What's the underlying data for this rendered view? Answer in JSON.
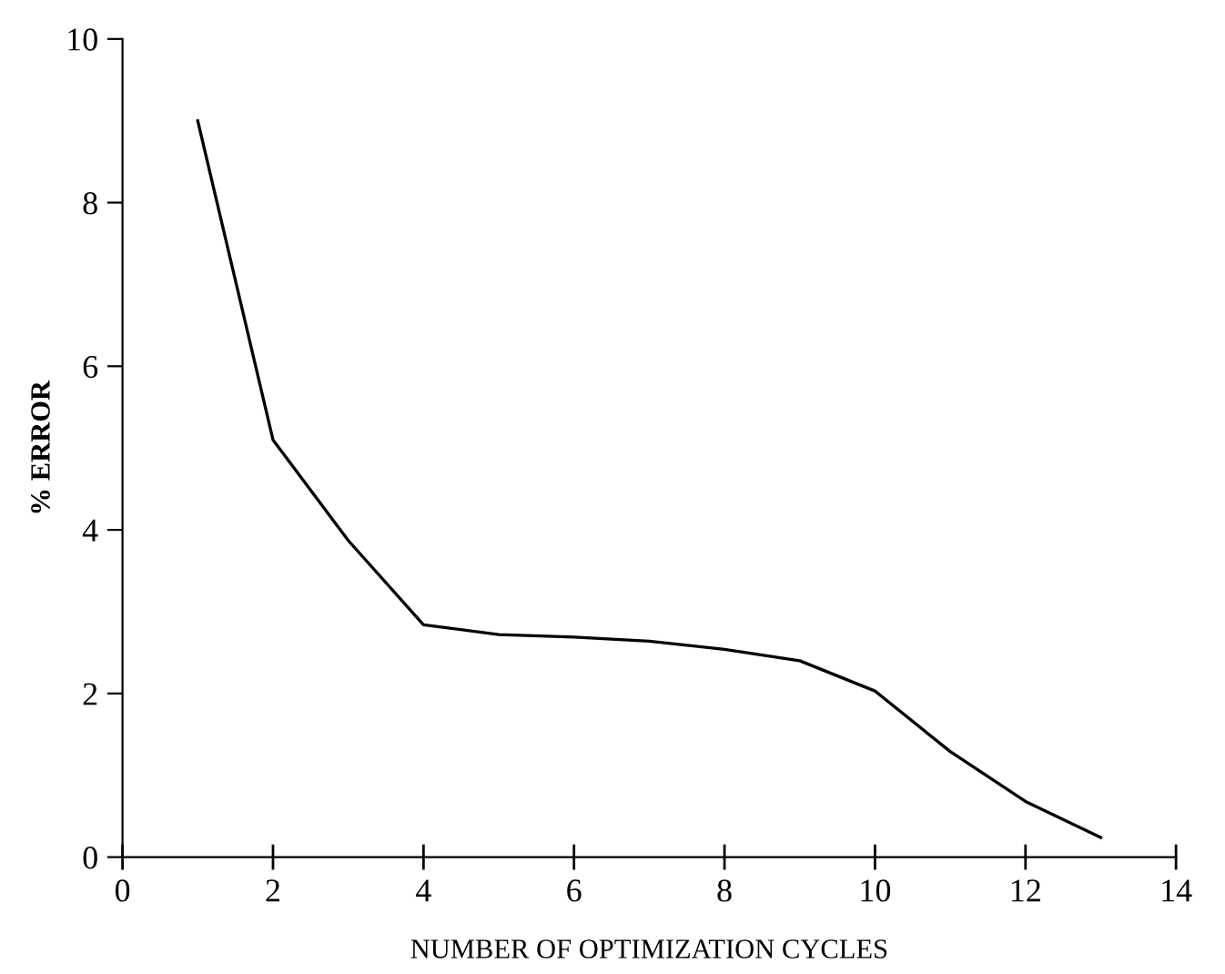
{
  "chart_data": {
    "type": "line",
    "xlabel": "NUMBER OF OPTIMIZATION CYCLES",
    "ylabel": "% ERROR",
    "x": [
      1,
      2,
      3,
      4,
      5,
      6,
      7,
      8,
      9,
      10,
      11,
      12,
      13
    ],
    "series": [
      {
        "color": "#000000",
        "values": [
          9.0,
          5.1,
          3.87,
          2.84,
          2.72,
          2.69,
          2.64,
          2.54,
          2.4,
          2.03,
          1.29,
          0.68,
          0.24
        ]
      }
    ],
    "xlim": [
      0,
      14
    ],
    "xticks": [
      0,
      2,
      4,
      6,
      8,
      10,
      12,
      14
    ],
    "ylim": [
      0,
      10
    ],
    "yticks": [
      0,
      2,
      4,
      6,
      8,
      10
    ],
    "grid": false,
    "legend": false,
    "marker": "none",
    "line_style": "solid"
  }
}
